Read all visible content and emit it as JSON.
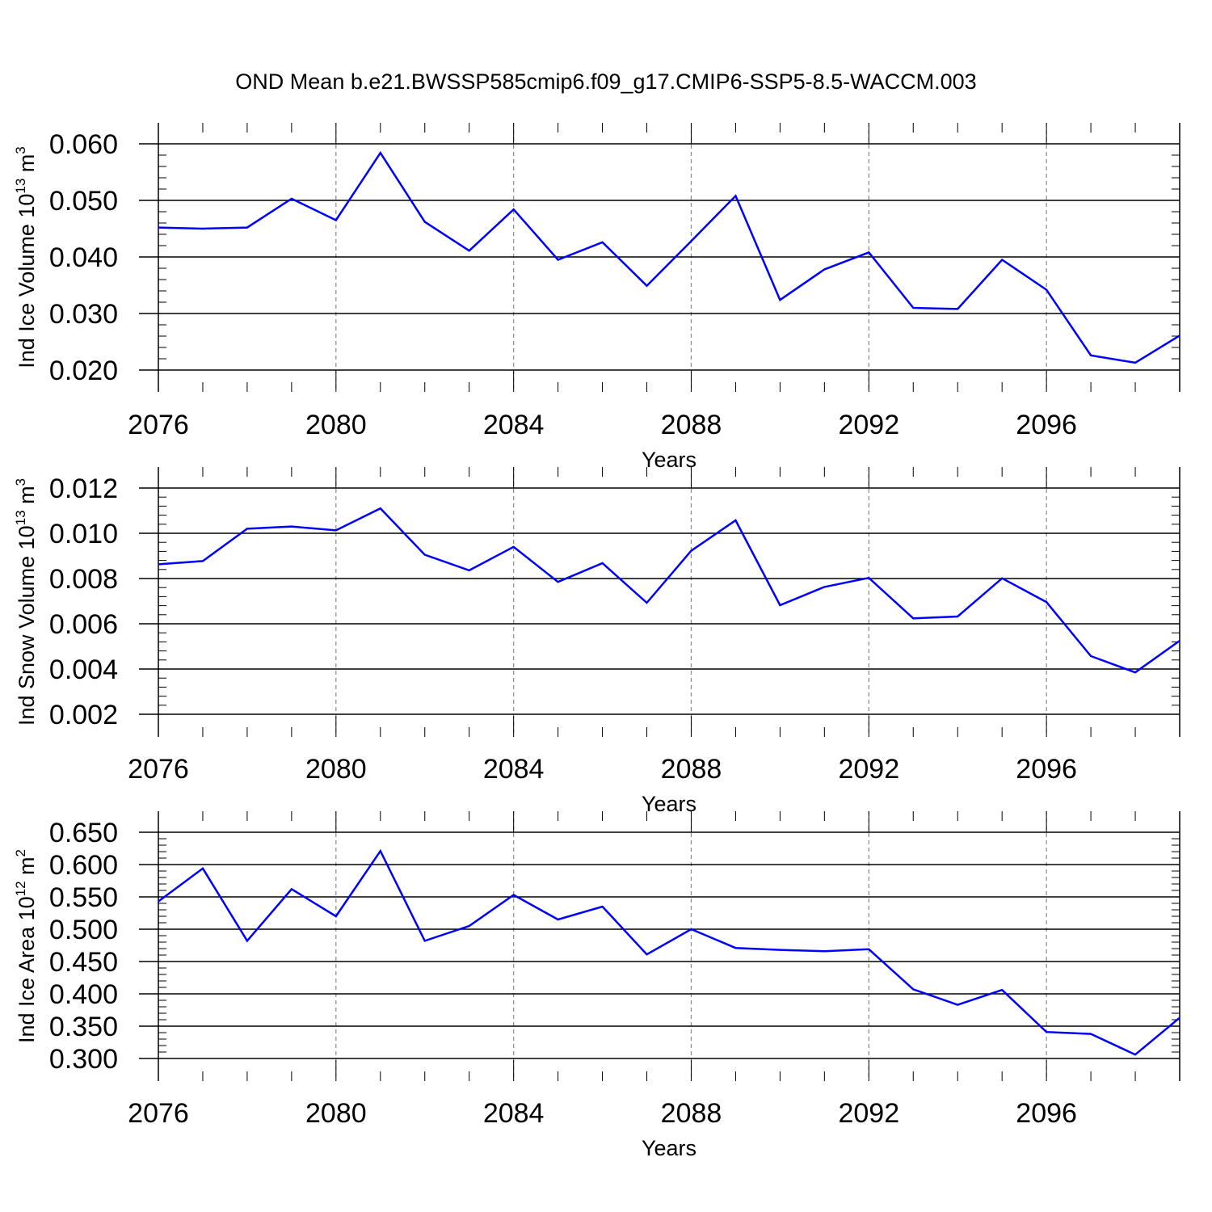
{
  "title": "OND Mean b.e21.BWSSP585cmip6.f09_g17.CMIP6-SSP5-8.5-WACCM.003",
  "line_color": "#0000ff",
  "chart_data": [
    {
      "type": "line",
      "ylabel": {
        "text": "Ind Ice Volume 10",
        "exp": "13",
        "unit": " m",
        "unit_exp": "3"
      },
      "xlabel": "Years",
      "xlim": [
        2076,
        2099
      ],
      "ylim": [
        0.02,
        0.06
      ],
      "y_ticks": [
        "0.020",
        "0.030",
        "0.040",
        "0.050",
        "0.060"
      ],
      "x_ticks": [
        "2076",
        "2080",
        "2084",
        "2088",
        "2092",
        "2096"
      ],
      "grid": "vertical dashed at major x ticks",
      "x": [
        2076,
        2077,
        2078,
        2079,
        2080,
        2081,
        2082,
        2083,
        2084,
        2085,
        2086,
        2087,
        2088,
        2089,
        2090,
        2091,
        2092,
        2093,
        2094,
        2095,
        2096,
        2097,
        2098,
        2099
      ],
      "values": [
        0.0452,
        0.045,
        0.0452,
        0.0503,
        0.0465,
        0.0584,
        0.0462,
        0.0411,
        0.0484,
        0.0395,
        0.0426,
        0.0349,
        0.0428,
        0.0508,
        0.0324,
        0.0378,
        0.0408,
        0.031,
        0.0308,
        0.0395,
        0.0342,
        0.0226,
        0.0213,
        0.0261
      ]
    },
    {
      "type": "line",
      "ylabel": {
        "text": "Ind Snow Volume 10",
        "exp": "13",
        "unit": " m",
        "unit_exp": "3"
      },
      "xlabel": "Years",
      "xlim": [
        2076,
        2099
      ],
      "ylim": [
        0.002,
        0.012
      ],
      "y_ticks": [
        "0.002",
        "0.004",
        "0.006",
        "0.008",
        "0.010",
        "0.012"
      ],
      "x_ticks": [
        "2076",
        "2080",
        "2084",
        "2088",
        "2092",
        "2096"
      ],
      "grid": "vertical dashed at major x ticks",
      "x": [
        2076,
        2077,
        2078,
        2079,
        2080,
        2081,
        2082,
        2083,
        2084,
        2085,
        2086,
        2087,
        2088,
        2089,
        2090,
        2091,
        2092,
        2093,
        2094,
        2095,
        2096,
        2097,
        2098,
        2099
      ],
      "values": [
        0.00863,
        0.00877,
        0.0102,
        0.0103,
        0.01013,
        0.0111,
        0.00905,
        0.00836,
        0.0094,
        0.00785,
        0.00868,
        0.00693,
        0.00923,
        0.01057,
        0.00682,
        0.00763,
        0.00803,
        0.00624,
        0.00632,
        0.00801,
        0.00696,
        0.00457,
        0.00385,
        0.00525
      ]
    },
    {
      "type": "line",
      "ylabel": {
        "text": "Ind Ice Area 10",
        "exp": "12",
        "unit": " m",
        "unit_exp": "2"
      },
      "xlabel": "Years",
      "xlim": [
        2076,
        2099
      ],
      "ylim": [
        0.3,
        0.65
      ],
      "y_ticks": [
        "0.300",
        "0.350",
        "0.400",
        "0.450",
        "0.500",
        "0.550",
        "0.600",
        "0.650"
      ],
      "x_ticks": [
        "2076",
        "2080",
        "2084",
        "2088",
        "2092",
        "2096"
      ],
      "grid": "vertical dashed at major x ticks",
      "x": [
        2076,
        2077,
        2078,
        2079,
        2080,
        2081,
        2082,
        2083,
        2084,
        2085,
        2086,
        2087,
        2088,
        2089,
        2090,
        2091,
        2092,
        2093,
        2094,
        2095,
        2096,
        2097,
        2098,
        2099
      ],
      "values": [
        0.543,
        0.594,
        0.482,
        0.562,
        0.52,
        0.621,
        0.482,
        0.505,
        0.553,
        0.515,
        0.535,
        0.461,
        0.5,
        0.471,
        0.468,
        0.466,
        0.469,
        0.407,
        0.383,
        0.406,
        0.341,
        0.338,
        0.306,
        0.363
      ]
    }
  ]
}
